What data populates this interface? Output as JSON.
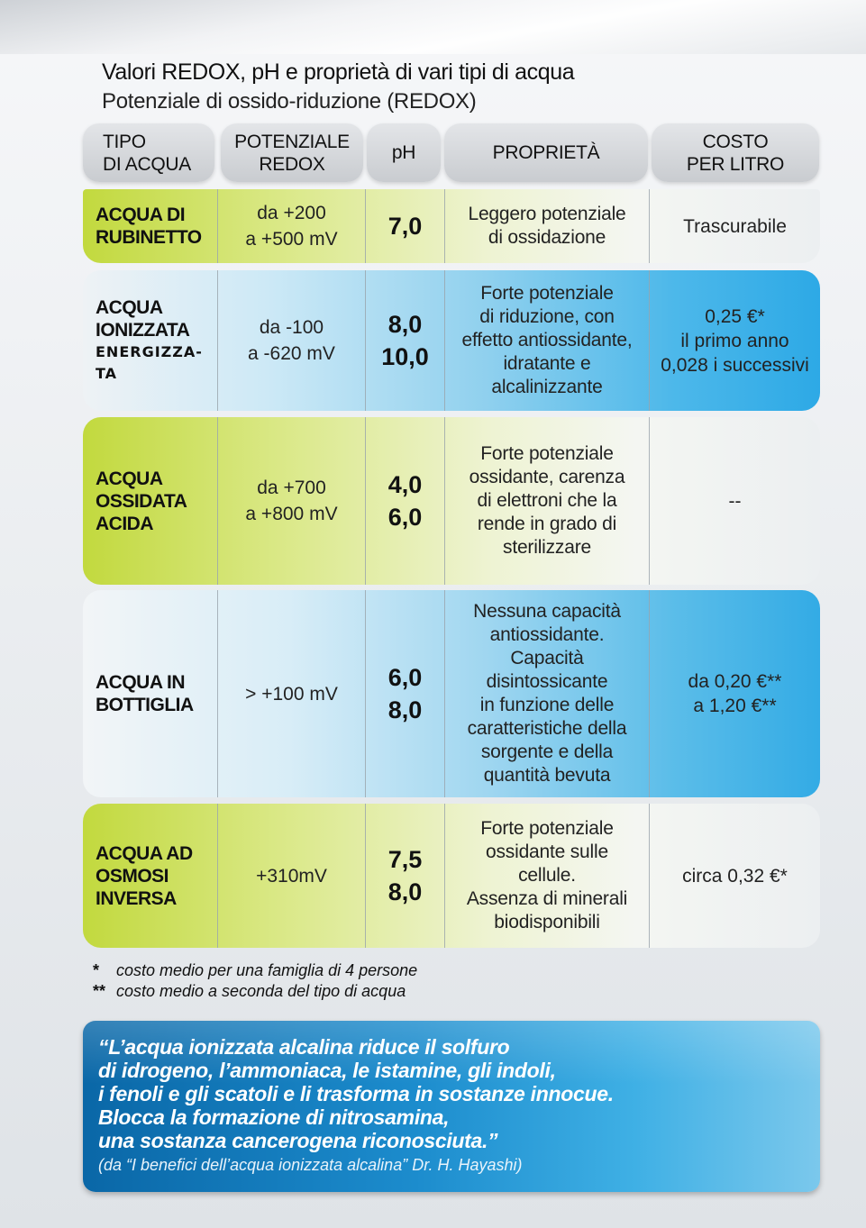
{
  "title": "Valori REDOX, pH e proprietà di vari tipi di acqua",
  "subtitle": "Potenziale di ossido-riduzione (REDOX)",
  "headers": {
    "type": [
      "TIPO",
      "DI ACQUA"
    ],
    "redox": [
      "POTENZIALE",
      "REDOX"
    ],
    "ph": "pH",
    "prop": "PROPRIETÀ",
    "cost": [
      "COSTO",
      "PER LITRO"
    ]
  },
  "rows": [
    {
      "type": [
        "ACQUA DI",
        "RUBINETTO"
      ],
      "redox": [
        "da +200",
        "a +500 mV"
      ],
      "ph": [
        "7,0"
      ],
      "prop": [
        "Leggero potenziale",
        "di ossidazione"
      ],
      "cost": [
        "Trascurabile"
      ]
    },
    {
      "type": [
        "ACQUA",
        "IONIZZATA"
      ],
      "type_small": [
        "ENERGIZZA-",
        "TA"
      ],
      "redox": [
        "da -100",
        "a -620 mV"
      ],
      "ph": [
        "8,0",
        "10,0"
      ],
      "prop": [
        "Forte potenziale",
        "di riduzione, con",
        "effetto antiossidante,",
        "idratante e",
        "alcalinizzante"
      ],
      "cost": [
        "0,25 €*",
        "il primo anno",
        "0,028 i successivi"
      ]
    },
    {
      "type": [
        "ACQUA",
        "OSSIDATA",
        "ACIDA"
      ],
      "redox": [
        "da +700",
        "a +800 mV"
      ],
      "ph": [
        "4,0",
        "6,0"
      ],
      "prop": [
        "Forte potenziale",
        "ossidante, carenza",
        "di elettroni che la",
        "rende in grado di",
        "sterilizzare"
      ],
      "cost": [
        "--"
      ]
    },
    {
      "type": [
        "ACQUA IN",
        "BOTTIGLIA"
      ],
      "redox": [
        "> +100 mV"
      ],
      "ph": [
        "6,0",
        "8,0"
      ],
      "prop": [
        "Nessuna capacità",
        "antiossidante.",
        "Capacità",
        "disintossicante",
        "in funzione delle",
        "caratteristiche della",
        "sorgente e della",
        "quantità bevuta"
      ],
      "cost": [
        "da 0,20 €**",
        "a 1,20 €**"
      ]
    },
    {
      "type": [
        "ACQUA AD",
        "OSMOSI",
        "INVERSA"
      ],
      "redox": [
        "+310mV"
      ],
      "ph": [
        "7,5",
        "8,0"
      ],
      "prop": [
        "Forte potenziale",
        "ossidante sulle",
        "cellule.",
        "Assenza di minerali",
        "biodisponibili"
      ],
      "cost": [
        "circa 0,32 €*"
      ]
    }
  ],
  "footnotes": [
    {
      "mark": "*",
      "text": "costo medio per una famiglia di 4 persone"
    },
    {
      "mark": "**",
      "text": "costo medio a seconda del tipo di acqua"
    }
  ],
  "quote": {
    "lines": [
      "“L’acqua ionizzata alcalina riduce il solfuro",
      "di idrogeno, l’ammoniaca, le istamine, gli indoli,",
      "i fenoli e gli scatoli e li trasforma in sostanze innocue.",
      "Blocca la formazione di nitrosamina,",
      "una sostanza cancerogena riconosciuta.”"
    ],
    "source": "(da “I benefici dell’acqua ionizzata alcalina” Dr. H. Hayashi)"
  },
  "colors": {
    "green": "#c2d93e",
    "blue": "#2da9e6",
    "quote_bg": "#0a67a7",
    "header_grey": "#c9ccd0"
  }
}
